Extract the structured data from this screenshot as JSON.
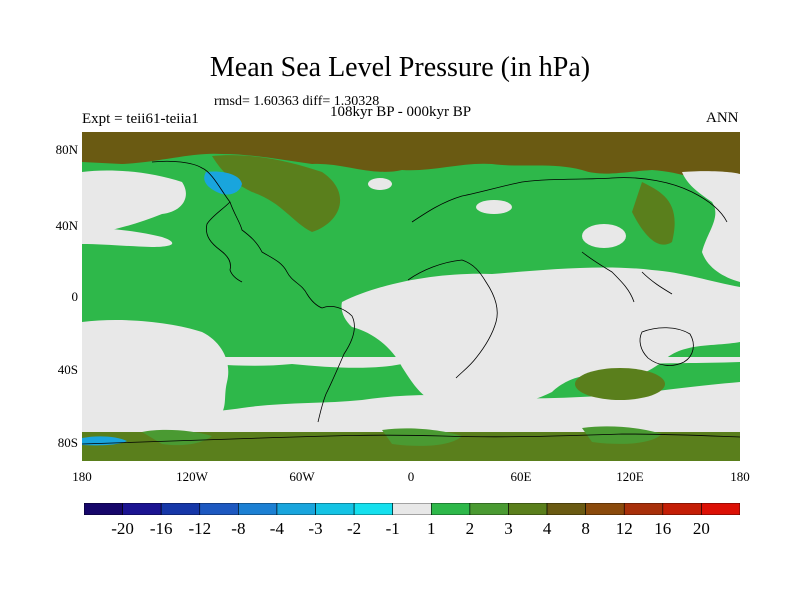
{
  "header": {
    "title": "Mean Sea Level Pressure (in hPa)",
    "stats": "rmsd= 1.60363 diff= 1.30328",
    "experiment": "Expt = teii61-teiia1",
    "period": "108kyr BP - 000kyr BP",
    "season": "ANN"
  },
  "axes": {
    "lat_labels": [
      "80N",
      "40N",
      "0",
      "40S",
      "80S"
    ],
    "lon_labels": [
      "180",
      "120W",
      "60W",
      "0",
      "60E",
      "120E",
      "180"
    ]
  },
  "colorbar": {
    "tick_labels": [
      "-20",
      "-16",
      "-12",
      "-8",
      "-4",
      "-3",
      "-2",
      "-1",
      "1",
      "2",
      "3",
      "4",
      "8",
      "12",
      "16",
      "20"
    ],
    "colors": [
      "#16066a",
      "#1b1391",
      "#1637a8",
      "#1d58c0",
      "#1c80d3",
      "#19a5dd",
      "#14c3e4",
      "#15e0ee",
      "#e8e8e8",
      "#2eb84a",
      "#4a9a32",
      "#5a7f1c",
      "#6a5a12",
      "#8a4a0c",
      "#a8300a",
      "#c41e06",
      "#dc1005"
    ]
  },
  "map_colors": {
    "neutral": "#e8e8e8",
    "green_1_2": "#2eb84a",
    "green_2_3": "#4a9a32",
    "olive_3_4": "#5a7f1c",
    "brown_4_8": "#6a5a12",
    "cyan_neg": "#19a5dd",
    "coast": "#000000"
  }
}
